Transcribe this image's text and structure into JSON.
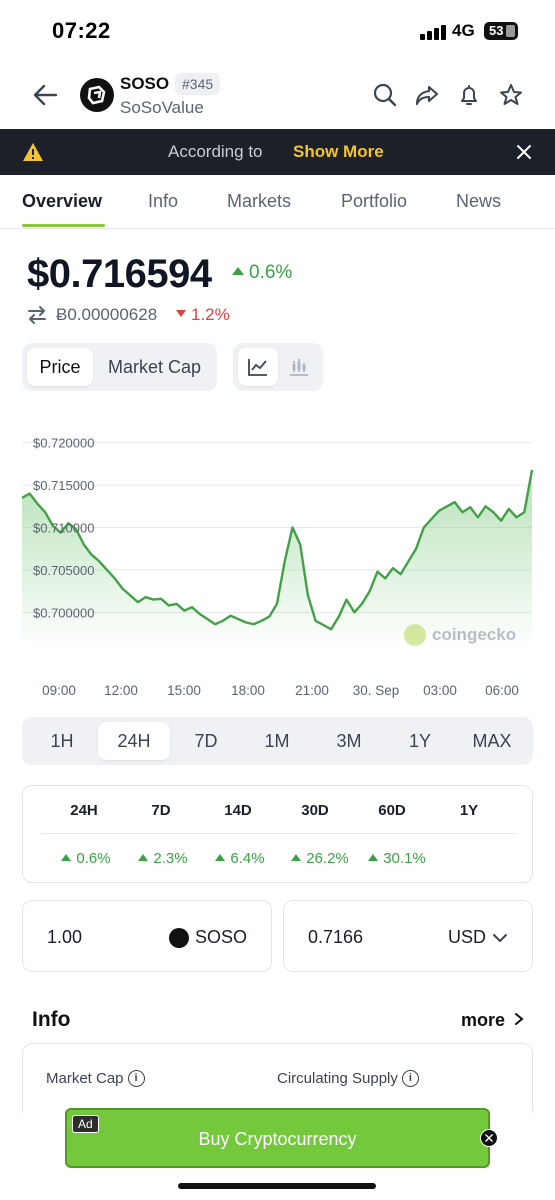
{
  "status_bar": {
    "time": "07:22",
    "network": "4G",
    "battery": "53"
  },
  "header": {
    "symbol": "SOSO",
    "rank": "#345",
    "name": "SoSoValue"
  },
  "banner": {
    "text": "According to",
    "action": "Show More"
  },
  "tabs": [
    "Overview",
    "Info",
    "Markets",
    "Portfolio",
    "News"
  ],
  "price": {
    "usd": "$0.716594",
    "usd_change": "0.6%",
    "btc": "Ƀ0.00000628",
    "btc_change": "1.2%"
  },
  "toggles": {
    "price": "Price",
    "market_cap": "Market Cap"
  },
  "chart_data": {
    "type": "area",
    "y_ticks": [
      "$0.720000",
      "$0.715000",
      "$0.710000",
      "$0.705000",
      "$0.700000"
    ],
    "x_ticks": [
      "09:00",
      "12:00",
      "15:00",
      "18:00",
      "21:00",
      "30. Sep",
      "03:00",
      "06:00"
    ],
    "ylim": [
      0.6965,
      0.7215
    ],
    "values": [
      0.7135,
      0.714,
      0.7128,
      0.7118,
      0.7102,
      0.7094,
      0.7105,
      0.7098,
      0.708,
      0.7068,
      0.706,
      0.705,
      0.704,
      0.7028,
      0.702,
      0.7012,
      0.7018,
      0.7015,
      0.7016,
      0.7008,
      0.701,
      0.7002,
      0.7006,
      0.6998,
      0.6992,
      0.6986,
      0.699,
      0.6996,
      0.6992,
      0.6988,
      0.6986,
      0.699,
      0.6995,
      0.701,
      0.706,
      0.71,
      0.708,
      0.702,
      0.699,
      0.6985,
      0.698,
      0.6995,
      0.7015,
      0.7,
      0.701,
      0.7025,
      0.7048,
      0.704,
      0.7052,
      0.7045,
      0.706,
      0.7075,
      0.71,
      0.711,
      0.712,
      0.7125,
      0.713,
      0.7118,
      0.7124,
      0.7112,
      0.7125,
      0.7118,
      0.7108,
      0.7122,
      0.7112,
      0.7118,
      0.7168
    ],
    "watermark": "coingecko",
    "line_color": "#43a047",
    "grid": true
  },
  "ranges": [
    "1H",
    "24H",
    "7D",
    "1M",
    "3M",
    "1Y",
    "MAX"
  ],
  "active_range": "24H",
  "performance": {
    "headers": [
      "24H",
      "7D",
      "14D",
      "30D",
      "60D",
      "1Y"
    ],
    "values": [
      "0.6%",
      "2.3%",
      "6.4%",
      "26.2%",
      "30.1%",
      ""
    ]
  },
  "converter": {
    "amount": "1.00",
    "amount_unit": "SOSO",
    "value": "0.7166",
    "value_unit": "USD"
  },
  "info": {
    "title": "Info",
    "more": "more",
    "market_cap_label": "Market Cap",
    "supply_label": "Circulating Supply"
  },
  "ad": {
    "label": "Ad",
    "text": "Buy Cryptocurrency"
  }
}
